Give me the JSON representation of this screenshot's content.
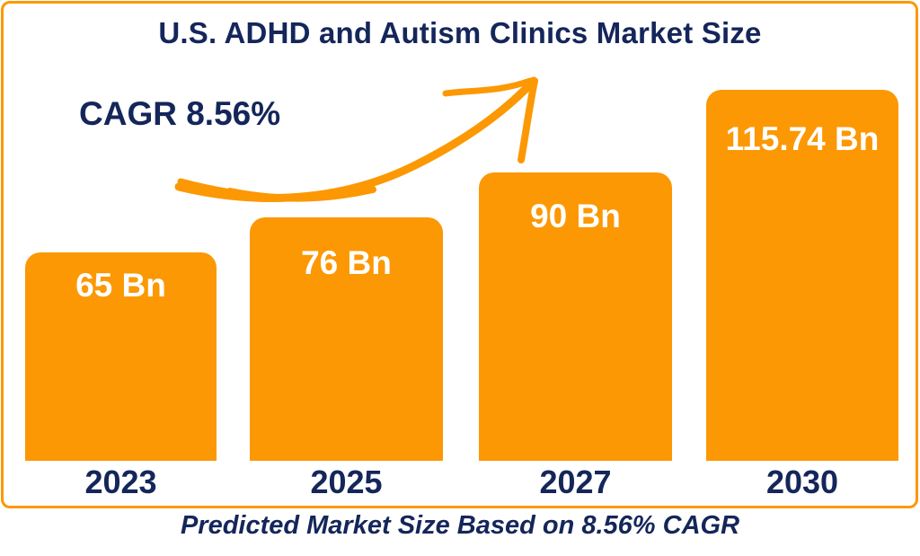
{
  "header": {
    "title": "U.S. ADHD and Autism Clinics Market Size",
    "cagr_label": "CAGR 8.56%"
  },
  "footer": {
    "caption": "Predicted Market Size Based on 8.56% CAGR"
  },
  "colors": {
    "accent_orange": "#FC9803",
    "navy": "#14265A",
    "bar_label_text": "#FFFFFF",
    "background": "#FFFFFF"
  },
  "chart_data": {
    "type": "bar",
    "title": "U.S. ADHD and Autism Clinics Market Size",
    "categories": [
      "2023",
      "2025",
      "2027",
      "2030"
    ],
    "values": [
      65,
      76,
      90,
      115.74
    ],
    "bar_labels": [
      "65 Bn",
      "76 Bn",
      "90 Bn",
      "115.74 Bn"
    ],
    "unit": "Bn",
    "annotations": [
      "CAGR 8.56%",
      "Predicted Market Size Based on 8.56% CAGR"
    ],
    "xlabel": "",
    "ylabel": "",
    "ylim": [
      0,
      115.74
    ],
    "grid": false,
    "legend": "none",
    "axes_visible": false,
    "bar_color": "#FC9803",
    "value_label_color": "#FFFFFF",
    "value_labels_position": "inside-top"
  }
}
